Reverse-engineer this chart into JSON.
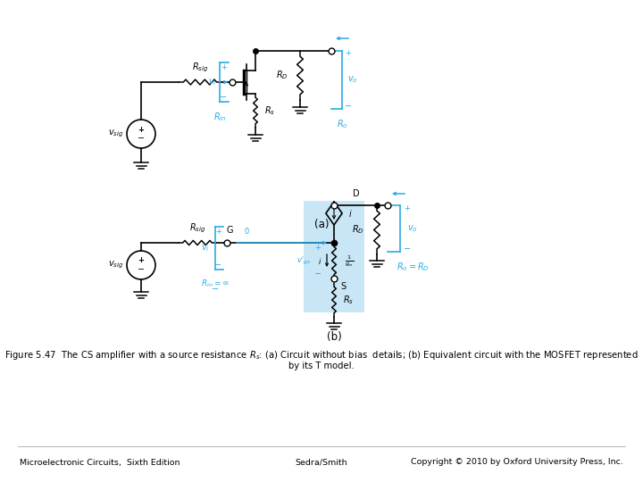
{
  "fig_width": 7.2,
  "fig_height": 5.4,
  "dpi": 100,
  "bg_color": "#ffffff",
  "caption_line1": "Figure 5.47  The CS amplifier with a source resistance $R_s$: (a) Circuit without bias  details; (b) Equivalent circuit with the MOSFET represented",
  "caption_line2": "by its T model.",
  "footer_left": "Microelectronic Circuits,  Sixth Edition",
  "footer_center": "Sedra/Smith",
  "footer_right": "Copyright © 2010 by Oxford University Press, Inc.",
  "label_a": "(a)",
  "label_b": "(b)",
  "cyan": "#29ABE2",
  "black": "#000000",
  "light_blue_bg": "#C8E6F5"
}
